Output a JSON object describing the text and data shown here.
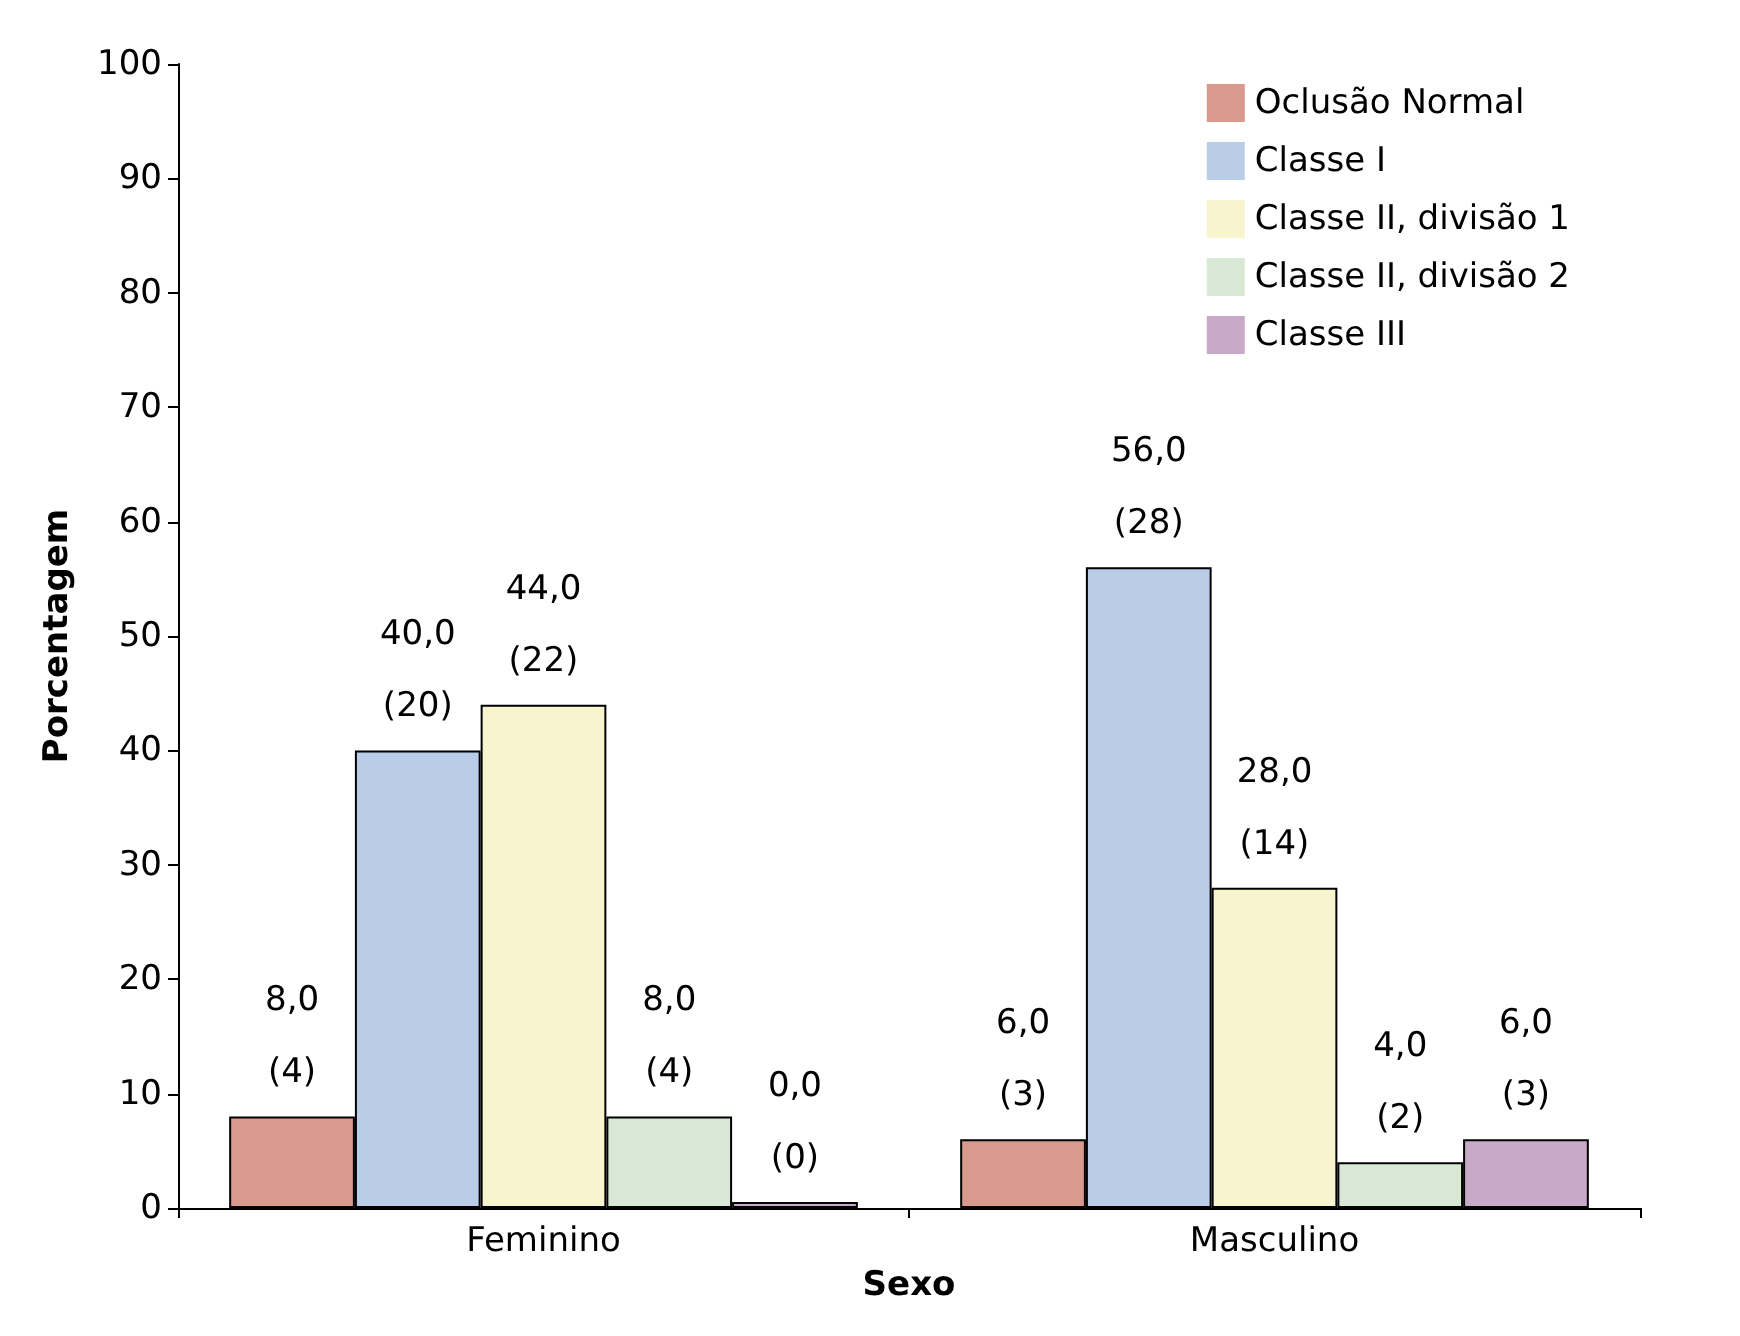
{
  "chart_data": {
    "type": "bar",
    "xlabel": "Sexo",
    "ylabel": "Porcentagem",
    "categories": [
      "Feminino",
      "Masculino"
    ],
    "series": [
      {
        "name": "Oclusão Normal",
        "color": "#d99a8e",
        "values": [
          8,
          6
        ],
        "value_labels": [
          "8,0\n(4)",
          "6,0\n(3)"
        ]
      },
      {
        "name": "Classe I",
        "color": "#b9cde8",
        "values": [
          40,
          56
        ],
        "value_labels": [
          "40,0\n(20)",
          "56,0\n(28)"
        ]
      },
      {
        "name": "Classe II, divisão 1",
        "color": "#f8f4cd",
        "values": [
          44,
          28
        ],
        "value_labels": [
          "44,0\n(22)",
          "28,0\n(14)"
        ]
      },
      {
        "name": "Classe II, divisão 2",
        "color": "#d9e8d5",
        "values": [
          8,
          4
        ],
        "value_labels": [
          "8,0\n(4)",
          "4,0\n(2)"
        ]
      },
      {
        "name": "Classe III",
        "color": "#c9a9c8",
        "values": [
          0,
          6
        ],
        "value_labels": [
          "0,0\n(0)",
          "6,0\n(3)"
        ]
      }
    ],
    "ylim": [
      0,
      100
    ],
    "yticks": [
      0,
      10,
      20,
      30,
      40,
      50,
      60,
      70,
      80,
      90,
      100
    ],
    "grid": false,
    "legend": "top right"
  }
}
